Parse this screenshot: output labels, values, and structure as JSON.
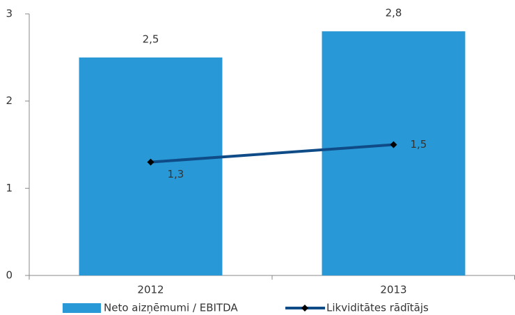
{
  "chart_data": {
    "type": "bar",
    "categories": [
      "2012",
      "2013"
    ],
    "series": [
      {
        "name": "Neto aizņēmumi / EBITDA",
        "type": "bar",
        "color": "#2899d6",
        "values": [
          2.5,
          2.8
        ],
        "value_labels": [
          "2,5",
          "2,8"
        ]
      },
      {
        "name": "Likviditātes rādītājs",
        "type": "line",
        "color": "#0f4c87",
        "values": [
          1.3,
          1.5
        ],
        "value_labels": [
          "1,3",
          "1,5"
        ]
      }
    ],
    "ylim": [
      0,
      3
    ],
    "yticks": [
      0,
      1,
      2,
      3
    ],
    "grid": false,
    "legend": "bottom"
  }
}
